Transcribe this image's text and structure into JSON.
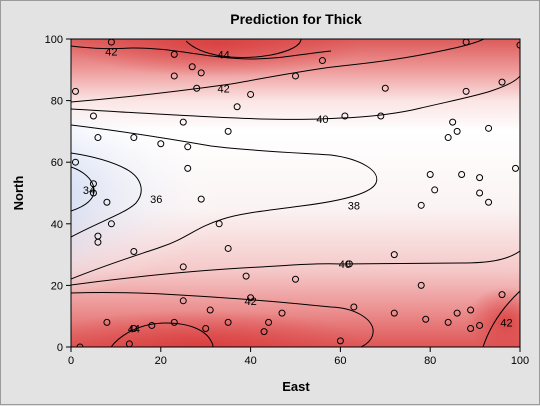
{
  "chart_data": {
    "type": "contour",
    "title": "Prediction for Thick",
    "xlabel": "East",
    "ylabel": "North",
    "xlim": [
      0,
      100
    ],
    "ylim": [
      0,
      100
    ],
    "xticks": [
      0,
      20,
      40,
      60,
      80,
      100
    ],
    "yticks": [
      0,
      20,
      40,
      60,
      80,
      100
    ],
    "colors": {
      "low": "#3f77d6",
      "mid": "#ffffff",
      "high": "#d93a3a",
      "background": "#e3e3e3"
    },
    "contour_labels": [
      {
        "text": "42",
        "x": 9,
        "y": 96
      },
      {
        "text": "44",
        "x": 34,
        "y": 95
      },
      {
        "text": "42",
        "x": 34,
        "y": 84
      },
      {
        "text": "40",
        "x": 56,
        "y": 74
      },
      {
        "text": "34",
        "x": 4,
        "y": 51
      },
      {
        "text": "36",
        "x": 19,
        "y": 48
      },
      {
        "text": "38",
        "x": 63,
        "y": 46
      },
      {
        "text": "40",
        "x": 61,
        "y": 27
      },
      {
        "text": "42",
        "x": 40,
        "y": 15
      },
      {
        "text": "42",
        "x": 97,
        "y": 8
      },
      {
        "text": "44",
        "x": 14,
        "y": 6
      }
    ],
    "points": [
      [
        1,
        83
      ],
      [
        9,
        99
      ],
      [
        23,
        95
      ],
      [
        27,
        91
      ],
      [
        29,
        89
      ],
      [
        23,
        88
      ],
      [
        28,
        84
      ],
      [
        40,
        82
      ],
      [
        37,
        78
      ],
      [
        50,
        88
      ],
      [
        56,
        93
      ],
      [
        70,
        84
      ],
      [
        88,
        99
      ],
      [
        96,
        86
      ],
      [
        88,
        83
      ],
      [
        100,
        98
      ],
      [
        5,
        75
      ],
      [
        14,
        68
      ],
      [
        6,
        68
      ],
      [
        25,
        73
      ],
      [
        26,
        65
      ],
      [
        35,
        70
      ],
      [
        61,
        75
      ],
      [
        69,
        75
      ],
      [
        85,
        73
      ],
      [
        86,
        70
      ],
      [
        84,
        68
      ],
      [
        93,
        71
      ],
      [
        20,
        66
      ],
      [
        26,
        58
      ],
      [
        29,
        48
      ],
      [
        33,
        40
      ],
      [
        35,
        32
      ],
      [
        8,
        47
      ],
      [
        9,
        40
      ],
      [
        6,
        36
      ],
      [
        6,
        34
      ],
      [
        14,
        31
      ],
      [
        1,
        60
      ],
      [
        5,
        53
      ],
      [
        5,
        50
      ],
      [
        78,
        46
      ],
      [
        80,
        56
      ],
      [
        81,
        51
      ],
      [
        87,
        56
      ],
      [
        91,
        55
      ],
      [
        91,
        50
      ],
      [
        93,
        47
      ],
      [
        99,
        58
      ],
      [
        25,
        26
      ],
      [
        39,
        23
      ],
      [
        50,
        22
      ],
      [
        62,
        27
      ],
      [
        72,
        30
      ],
      [
        78,
        20
      ],
      [
        25,
        15
      ],
      [
        40,
        16
      ],
      [
        47,
        11
      ],
      [
        31,
        12
      ],
      [
        23,
        8
      ],
      [
        30,
        6
      ],
      [
        35,
        8
      ],
      [
        44,
        8
      ],
      [
        43,
        5
      ],
      [
        63,
        13
      ],
      [
        72,
        11
      ],
      [
        79,
        9
      ],
      [
        84,
        8
      ],
      [
        86,
        11
      ],
      [
        89,
        12
      ],
      [
        89,
        6
      ],
      [
        91,
        7
      ],
      [
        96,
        17
      ],
      [
        60,
        2
      ],
      [
        18,
        7
      ],
      [
        13,
        1
      ],
      [
        2,
        0
      ],
      [
        8,
        8
      ],
      [
        14,
        6
      ]
    ]
  }
}
